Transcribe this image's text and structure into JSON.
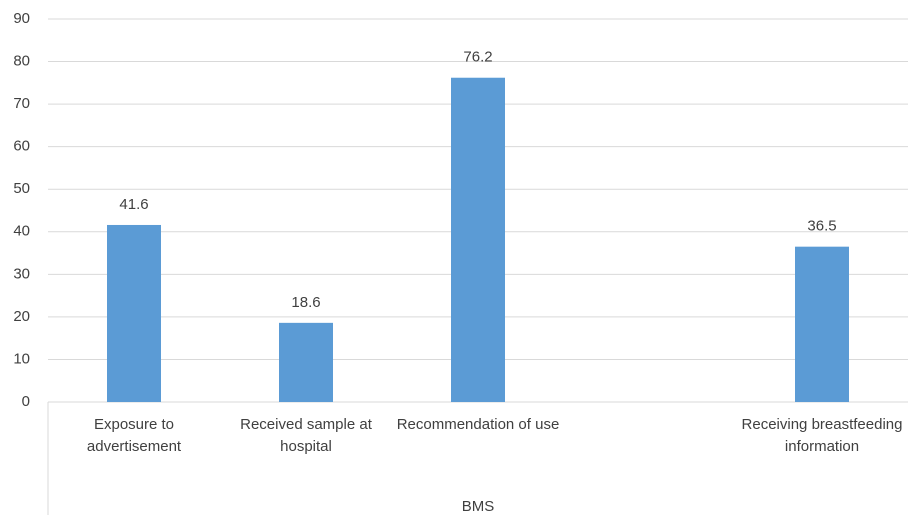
{
  "chart_data": {
    "type": "bar",
    "categories": [
      "Exposure to advertisement",
      "Received sample at hospital",
      "Recommendation of use",
      null,
      "Receiving breastfeeding information"
    ],
    "values": [
      41.6,
      18.6,
      76.2,
      null,
      36.5
    ],
    "color": "#5b9bd5",
    "xlabel": "BMS",
    "ylim": [
      0,
      90
    ],
    "yticks": [
      0,
      10,
      20,
      30,
      40,
      50,
      60,
      70,
      80,
      90
    ],
    "grid": true
  }
}
